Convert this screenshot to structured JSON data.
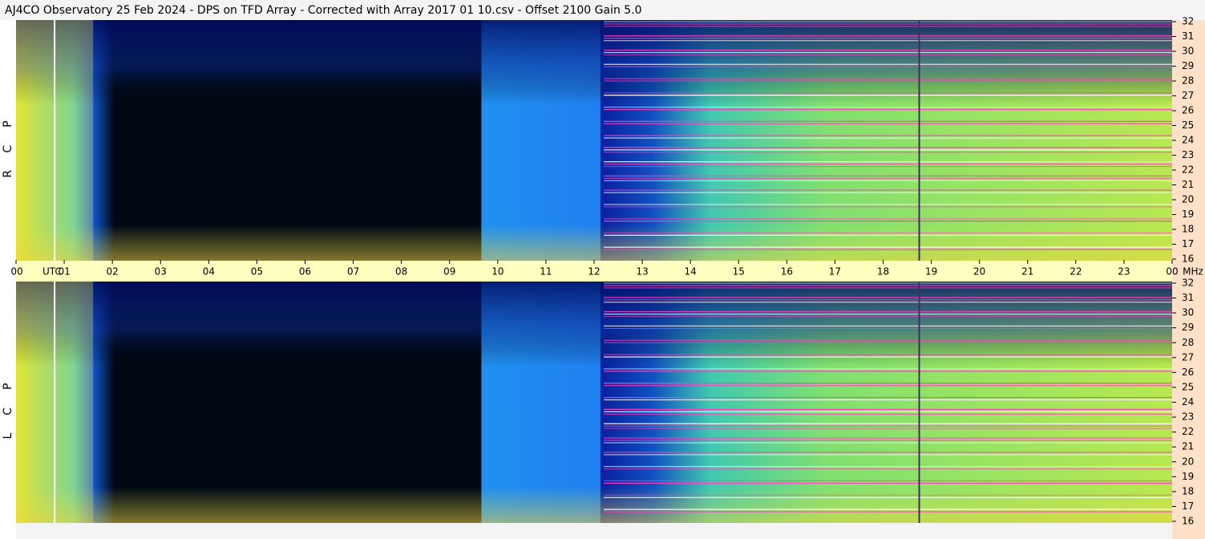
{
  "chart_data": {
    "type": "spectrogram",
    "title": "AJ4CO Observatory  25 Feb 2024  -  DPS on TFD Array  -  Corrected with Array 2017 01 10.csv  -  Offset 2100  Gain 5.0",
    "panels": [
      "RCP",
      "LCP"
    ],
    "x_label": "UTC",
    "y_label": "MHz",
    "xlim": [
      0,
      24
    ],
    "xticks": [
      {
        "value": 0,
        "label": "00"
      },
      {
        "value": 1,
        "label": "01"
      },
      {
        "value": 2,
        "label": "02"
      },
      {
        "value": 3,
        "label": "03"
      },
      {
        "value": 4,
        "label": "04"
      },
      {
        "value": 5,
        "label": "05"
      },
      {
        "value": 6,
        "label": "06"
      },
      {
        "value": 7,
        "label": "07"
      },
      {
        "value": 8,
        "label": "08"
      },
      {
        "value": 9,
        "label": "09"
      },
      {
        "value": 10,
        "label": "10"
      },
      {
        "value": 11,
        "label": "11"
      },
      {
        "value": 12,
        "label": "12"
      },
      {
        "value": 13,
        "label": "13"
      },
      {
        "value": 14,
        "label": "14"
      },
      {
        "value": 15,
        "label": "15"
      },
      {
        "value": 16,
        "label": "16"
      },
      {
        "value": 17,
        "label": "17"
      },
      {
        "value": 18,
        "label": "18"
      },
      {
        "value": 19,
        "label": "19"
      },
      {
        "value": 20,
        "label": "20"
      },
      {
        "value": 21,
        "label": "21"
      },
      {
        "value": 22,
        "label": "22"
      },
      {
        "value": 23,
        "label": "23"
      },
      {
        "value": 24,
        "label": "00"
      }
    ],
    "ylim": [
      16,
      32
    ],
    "yticks": [
      16,
      17,
      18,
      19,
      20,
      21,
      22,
      23,
      24,
      25,
      26,
      27,
      28,
      29,
      30,
      31,
      32
    ]
  }
}
